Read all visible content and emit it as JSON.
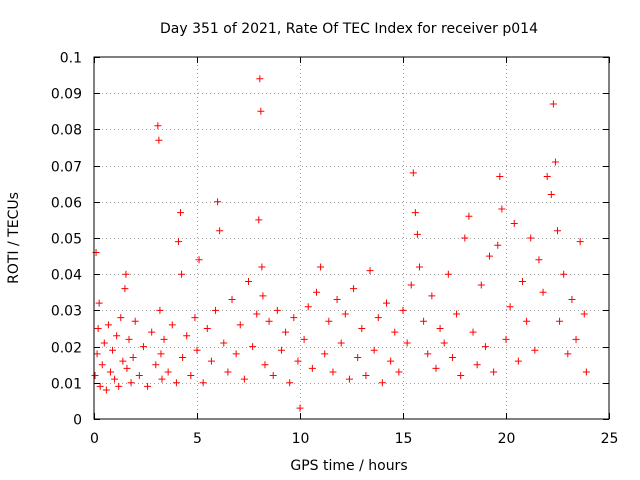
{
  "chart_data": {
    "type": "scatter",
    "title": "Day 351 of 2021, Rate Of TEC Index for receiver p014",
    "xlabel": "GPS time / hours",
    "ylabel": "ROTI / TECUs",
    "xlim": [
      0,
      25
    ],
    "ylim": [
      0,
      0.1
    ],
    "x_ticks": [
      0,
      5,
      10,
      15,
      20,
      25
    ],
    "x_tick_labels": [
      "0",
      "5",
      "10",
      "15",
      "20",
      "25"
    ],
    "y_ticks": [
      0,
      0.01,
      0.02,
      0.03,
      0.04,
      0.05,
      0.06,
      0.07,
      0.08,
      0.09,
      0.1
    ],
    "y_tick_labels": [
      "0",
      "0.01",
      "0.02",
      "0.03",
      "0.04",
      "0.05",
      "0.06",
      "0.07",
      "0.08",
      "0.09",
      "0.1"
    ],
    "grid": true,
    "marker": "+",
    "marker_color": "#ff0000",
    "series": [
      {
        "name": "ROTI",
        "x": [
          0.05,
          0.1,
          0.15,
          0.2,
          0.25,
          0.3,
          0.4,
          0.5,
          0.6,
          0.7,
          0.8,
          0.9,
          1.0,
          1.1,
          1.2,
          1.3,
          1.4,
          1.5,
          1.55,
          1.6,
          1.7,
          1.8,
          1.9,
          2.0,
          2.2,
          2.4,
          2.6,
          2.8,
          3.0,
          3.1,
          3.15,
          3.2,
          3.25,
          3.3,
          3.4,
          3.6,
          3.8,
          4.0,
          4.1,
          4.2,
          4.25,
          4.3,
          4.5,
          4.7,
          4.9,
          5.0,
          5.1,
          5.3,
          5.5,
          5.7,
          5.9,
          6.0,
          6.1,
          6.3,
          6.5,
          6.7,
          6.9,
          7.1,
          7.3,
          7.5,
          7.7,
          7.9,
          8.0,
          8.05,
          8.1,
          8.15,
          8.2,
          8.3,
          8.5,
          8.7,
          8.9,
          9.1,
          9.3,
          9.5,
          9.7,
          9.9,
          10.0,
          10.2,
          10.4,
          10.6,
          10.8,
          11.0,
          11.2,
          11.4,
          11.6,
          11.8,
          12.0,
          12.2,
          12.4,
          12.6,
          12.8,
          13.0,
          13.2,
          13.4,
          13.6,
          13.8,
          14.0,
          14.2,
          14.4,
          14.6,
          14.8,
          15.0,
          15.2,
          15.4,
          15.5,
          15.6,
          15.7,
          15.8,
          16.0,
          16.2,
          16.4,
          16.6,
          16.8,
          17.0,
          17.2,
          17.4,
          17.6,
          17.8,
          18.0,
          18.2,
          18.4,
          18.6,
          18.8,
          19.0,
          19.2,
          19.4,
          19.6,
          19.7,
          19.8,
          20.0,
          20.2,
          20.4,
          20.6,
          20.8,
          21.0,
          21.2,
          21.4,
          21.6,
          21.8,
          22.0,
          22.2,
          22.3,
          22.4,
          22.5,
          22.6,
          22.8,
          23.0,
          23.2,
          23.4,
          23.6,
          23.8,
          23.9
        ],
        "y": [
          0.012,
          0.046,
          0.018,
          0.025,
          0.032,
          0.009,
          0.015,
          0.021,
          0.008,
          0.026,
          0.013,
          0.019,
          0.011,
          0.023,
          0.009,
          0.028,
          0.016,
          0.036,
          0.04,
          0.014,
          0.022,
          0.01,
          0.017,
          0.027,
          0.012,
          0.02,
          0.009,
          0.024,
          0.015,
          0.081,
          0.077,
          0.03,
          0.018,
          0.011,
          0.022,
          0.013,
          0.026,
          0.01,
          0.049,
          0.057,
          0.04,
          0.017,
          0.023,
          0.012,
          0.028,
          0.019,
          0.044,
          0.01,
          0.025,
          0.016,
          0.03,
          0.06,
          0.052,
          0.021,
          0.013,
          0.033,
          0.018,
          0.026,
          0.011,
          0.038,
          0.02,
          0.029,
          0.055,
          0.094,
          0.085,
          0.042,
          0.034,
          0.015,
          0.027,
          0.012,
          0.03,
          0.019,
          0.024,
          0.01,
          0.028,
          0.016,
          0.003,
          0.022,
          0.031,
          0.014,
          0.035,
          0.042,
          0.018,
          0.027,
          0.013,
          0.033,
          0.021,
          0.029,
          0.011,
          0.036,
          0.017,
          0.025,
          0.012,
          0.041,
          0.019,
          0.028,
          0.01,
          0.032,
          0.016,
          0.024,
          0.013,
          0.03,
          0.021,
          0.037,
          0.068,
          0.057,
          0.051,
          0.042,
          0.027,
          0.018,
          0.034,
          0.014,
          0.025,
          0.021,
          0.04,
          0.017,
          0.029,
          0.012,
          0.05,
          0.056,
          0.024,
          0.015,
          0.037,
          0.02,
          0.045,
          0.013,
          0.048,
          0.067,
          0.058,
          0.022,
          0.031,
          0.054,
          0.016,
          0.038,
          0.027,
          0.05,
          0.019,
          0.044,
          0.035,
          0.067,
          0.062,
          0.087,
          0.071,
          0.052,
          0.027,
          0.04,
          0.018,
          0.033,
          0.022,
          0.049,
          0.029,
          0.013
        ]
      }
    ]
  }
}
